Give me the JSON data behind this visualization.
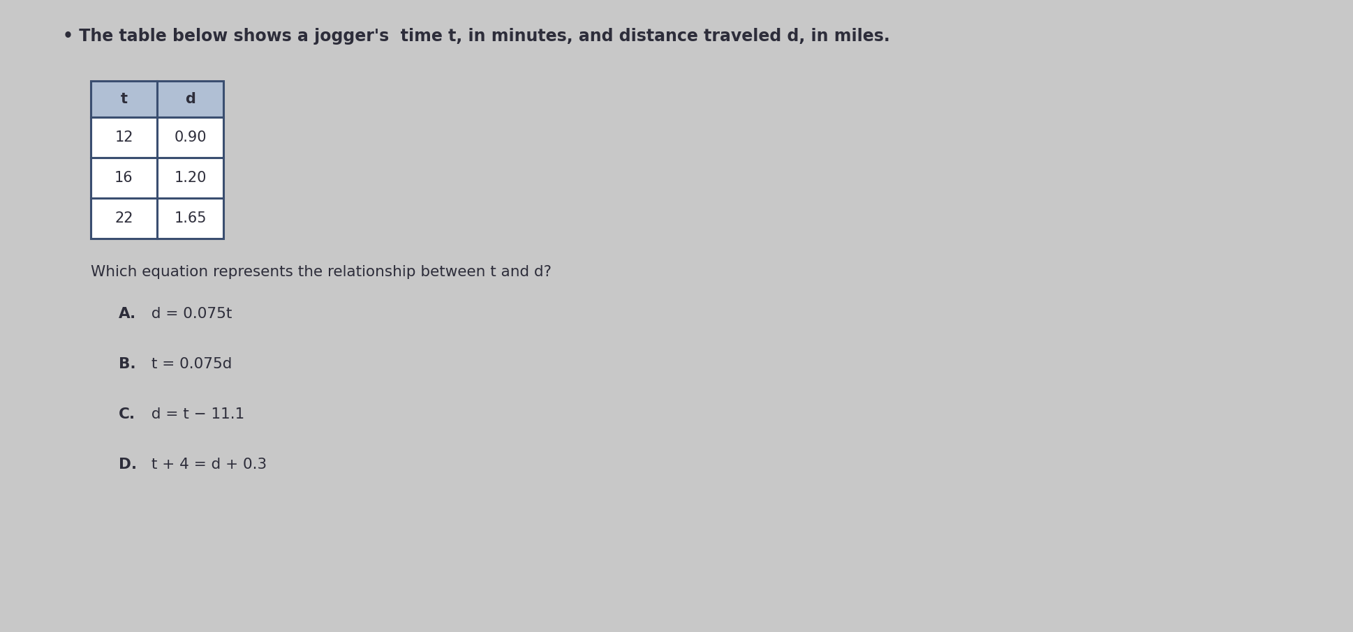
{
  "title_text": "• The table below shows a jogger's  time t, in minutes, and distance traveled d, in miles.",
  "table_headers": [
    "t",
    "d"
  ],
  "table_rows": [
    [
      "12",
      "0.90"
    ],
    [
      "16",
      "1.20"
    ],
    [
      "22",
      "1.65"
    ]
  ],
  "question": "Which equation represents the relationship between t and d?",
  "options": [
    {
      "bold": "A.",
      "eq": " d = 0.075t"
    },
    {
      "bold": "B.",
      "eq": " t = 0.075d"
    },
    {
      "bold": "C.",
      "eq": " d = t − 11.1"
    },
    {
      "bold": "D.",
      "eq": " t + 4 = d + 0.3"
    }
  ],
  "bg_color": "#c8c8c8",
  "table_header_bg": "#b0bfd4",
  "table_border_color": "#3a4e70",
  "text_color": "#2d2d3a",
  "title_fontsize": 17,
  "question_fontsize": 15.5,
  "option_fontsize": 15.5,
  "table_fontsize": 15
}
